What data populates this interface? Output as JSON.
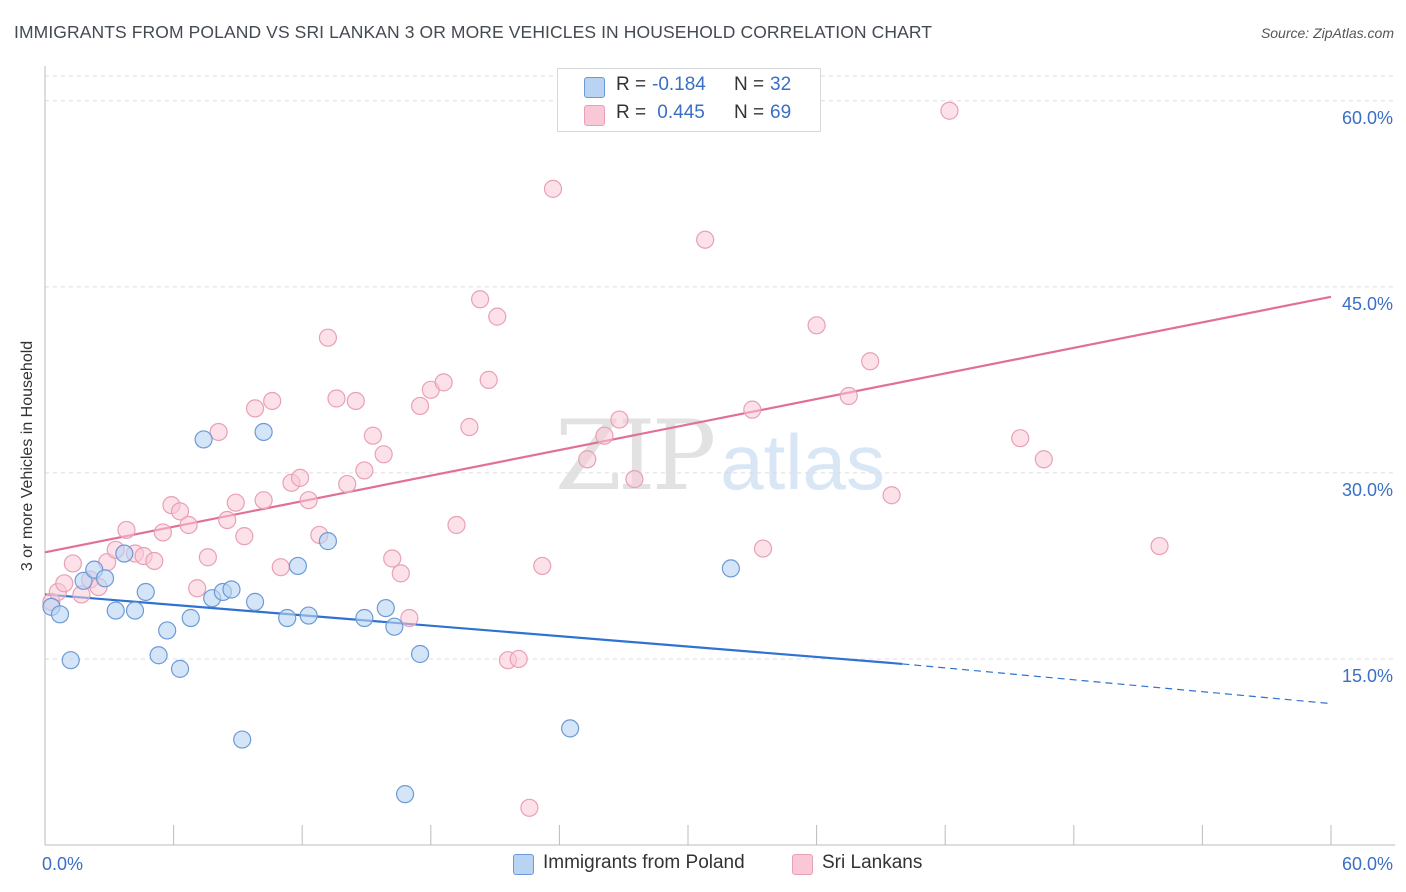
{
  "header": {
    "title": "IMMIGRANTS FROM POLAND VS SRI LANKAN 3 OR MORE VEHICLES IN HOUSEHOLD CORRELATION CHART",
    "source": "Source: ZipAtlas.com"
  },
  "watermark": {
    "zip": "ZIP",
    "atlas": "atlas"
  },
  "legend": {
    "rows": [
      {
        "r_label": "R =",
        "r_value": "-0.184",
        "n_label": "N =",
        "n_value": "32"
      },
      {
        "r_label": "R =",
        "r_value": " 0.445",
        "n_label": "N =",
        "n_value": "69"
      }
    ]
  },
  "colors": {
    "poland_fill": "#b9d3f3",
    "poland_stroke": "#6d9ad6",
    "poland_line": "#2f72d0",
    "srilanka_fill": "#f9c8d6",
    "srilanka_stroke": "#e9a0b7",
    "srilanka_line": "#e26f97",
    "grid": "#dddddd",
    "tick_label": "#3a6fc4"
  },
  "chart_data": {
    "type": "scatter",
    "title": "IMMIGRANTS FROM POLAND VS SRI LANKAN 3 OR MORE VEHICLES IN HOUSEHOLD CORRELATION CHART",
    "xlabel": "",
    "ylabel": "3 or more Vehicles in Household",
    "xlim": [
      0,
      60
    ],
    "ylim": [
      0,
      62
    ],
    "x_tick_labels": [
      "0.0%",
      "60.0%"
    ],
    "y_ticks": [
      15,
      30,
      45,
      60
    ],
    "y_tick_labels": [
      "15.0%",
      "30.0%",
      "45.0%",
      "60.0%"
    ],
    "grid": true,
    "legend_position": "bottom",
    "series": [
      {
        "name": "Immigrants from Poland",
        "color": "#b9d3f3",
        "points": [
          [
            0.3,
            19.2
          ],
          [
            0.7,
            18.6
          ],
          [
            1.2,
            14.9
          ],
          [
            1.8,
            21.3
          ],
          [
            2.3,
            22.2
          ],
          [
            2.8,
            21.5
          ],
          [
            3.3,
            18.9
          ],
          [
            3.7,
            23.5
          ],
          [
            4.2,
            18.9
          ],
          [
            4.7,
            20.4
          ],
          [
            5.3,
            15.3
          ],
          [
            5.7,
            17.3
          ],
          [
            6.3,
            14.2
          ],
          [
            6.8,
            18.3
          ],
          [
            7.4,
            32.7
          ],
          [
            7.8,
            19.9
          ],
          [
            8.3,
            20.4
          ],
          [
            8.7,
            20.6
          ],
          [
            9.2,
            8.5
          ],
          [
            9.8,
            19.6
          ],
          [
            10.2,
            33.3
          ],
          [
            11.3,
            18.3
          ],
          [
            11.8,
            22.5
          ],
          [
            12.3,
            18.5
          ],
          [
            13.2,
            24.5
          ],
          [
            14.9,
            18.3
          ],
          [
            15.9,
            19.1
          ],
          [
            16.3,
            17.6
          ],
          [
            16.8,
            4.1
          ],
          [
            17.5,
            15.4
          ],
          [
            24.5,
            9.4
          ],
          [
            32.0,
            22.3
          ]
        ],
        "trend_solid": [
          [
            0,
            20.2
          ],
          [
            40,
            14.6
          ]
        ],
        "trend_dashed": [
          [
            40,
            14.6
          ],
          [
            60,
            11.4
          ]
        ]
      },
      {
        "name": "Sri Lankans",
        "color": "#f9c8d6",
        "points": [
          [
            0.3,
            19.6
          ],
          [
            0.6,
            20.4
          ],
          [
            0.9,
            21.1
          ],
          [
            1.3,
            22.7
          ],
          [
            1.7,
            20.2
          ],
          [
            2.1,
            21.4
          ],
          [
            2.5,
            20.8
          ],
          [
            2.9,
            22.8
          ],
          [
            3.3,
            23.8
          ],
          [
            3.8,
            25.4
          ],
          [
            4.2,
            23.5
          ],
          [
            4.6,
            23.3
          ],
          [
            5.1,
            22.9
          ],
          [
            5.5,
            25.2
          ],
          [
            5.9,
            27.4
          ],
          [
            6.3,
            26.9
          ],
          [
            6.7,
            25.8
          ],
          [
            7.1,
            20.7
          ],
          [
            7.6,
            23.2
          ],
          [
            8.1,
            33.3
          ],
          [
            8.5,
            26.2
          ],
          [
            8.9,
            27.6
          ],
          [
            9.3,
            24.9
          ],
          [
            9.8,
            35.2
          ],
          [
            10.2,
            27.8
          ],
          [
            10.6,
            35.8
          ],
          [
            11.0,
            22.4
          ],
          [
            11.5,
            29.2
          ],
          [
            11.9,
            29.6
          ],
          [
            12.3,
            27.8
          ],
          [
            12.8,
            25.0
          ],
          [
            13.2,
            40.9
          ],
          [
            13.6,
            36.0
          ],
          [
            14.1,
            29.1
          ],
          [
            14.5,
            35.8
          ],
          [
            14.9,
            30.2
          ],
          [
            15.3,
            33.0
          ],
          [
            15.8,
            31.5
          ],
          [
            16.2,
            23.1
          ],
          [
            16.6,
            21.9
          ],
          [
            17.0,
            18.3
          ],
          [
            17.5,
            35.4
          ],
          [
            18.0,
            36.7
          ],
          [
            18.6,
            37.3
          ],
          [
            19.2,
            25.8
          ],
          [
            19.8,
            33.7
          ],
          [
            20.3,
            44.0
          ],
          [
            20.7,
            37.5
          ],
          [
            21.1,
            42.6
          ],
          [
            21.6,
            14.9
          ],
          [
            22.1,
            15.0
          ],
          [
            22.6,
            3.0
          ],
          [
            23.2,
            22.5
          ],
          [
            23.7,
            52.9
          ],
          [
            25.3,
            31.1
          ],
          [
            26.1,
            33.0
          ],
          [
            26.8,
            34.3
          ],
          [
            27.5,
            29.5
          ],
          [
            30.8,
            48.8
          ],
          [
            33.0,
            35.1
          ],
          [
            33.5,
            23.9
          ],
          [
            36.0,
            41.9
          ],
          [
            37.5,
            36.2
          ],
          [
            38.5,
            39.0
          ],
          [
            39.5,
            28.2
          ],
          [
            42.2,
            59.2
          ],
          [
            45.5,
            32.8
          ],
          [
            46.6,
            31.1
          ],
          [
            52.0,
            24.1
          ]
        ],
        "trend_solid": [
          [
            0,
            23.6
          ],
          [
            60,
            44.2
          ]
        ]
      }
    ]
  }
}
